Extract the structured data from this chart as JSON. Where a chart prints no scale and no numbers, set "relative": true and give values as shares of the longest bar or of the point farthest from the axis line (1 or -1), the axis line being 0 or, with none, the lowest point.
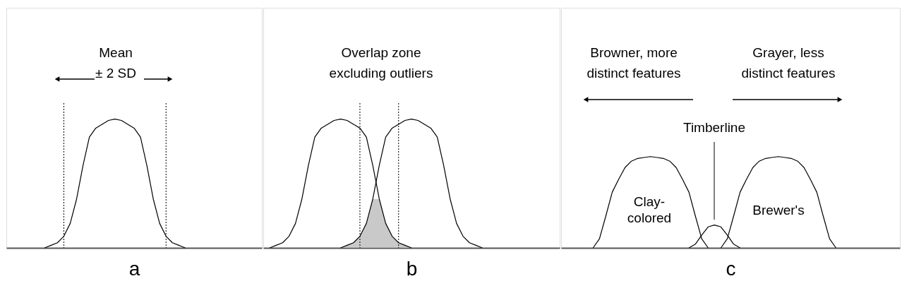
{
  "chart_data": [
    {
      "type": "line",
      "xlabel": "a",
      "relative": true,
      "categories": [
        null,
        null,
        null,
        null,
        null,
        null,
        null,
        null,
        null,
        null,
        null,
        null,
        null,
        null,
        null,
        null,
        null,
        null,
        null,
        null,
        null,
        null,
        null,
        null,
        null,
        null,
        null,
        null,
        null,
        null,
        null,
        null,
        null,
        null,
        null,
        null,
        null,
        null,
        null,
        null,
        null
      ],
      "series": [
        {
          "color": "#000000",
          "values": [
            null,
            null,
            null,
            null,
            null,
            null,
            0,
            0.02,
            0.04,
            0.09,
            0.19,
            0.38,
            0.64,
            0.86,
            0.93,
            0.96,
            0.99,
            1,
            0.99,
            0.96,
            0.93,
            0.86,
            0.64,
            0.38,
            0.19,
            0.09,
            0.04,
            0.02,
            0,
            null,
            null,
            null,
            null,
            null,
            null,
            null,
            null,
            null,
            null,
            null,
            null
          ]
        }
      ],
      "annotations": [
        "Mean\n± 2 SD"
      ]
    },
    {
      "type": "line",
      "xlabel": "b",
      "relative": true,
      "categories": [
        null,
        null,
        null,
        null,
        null,
        null,
        null,
        null,
        null,
        null,
        null,
        null,
        null,
        null,
        null,
        null,
        null,
        null,
        null,
        null,
        null,
        null,
        null,
        null,
        null,
        null,
        null,
        null,
        null,
        null,
        null,
        null,
        null,
        null,
        null,
        null,
        null,
        null,
        null,
        null,
        null,
        null,
        null,
        null,
        null,
        null,
        null
      ],
      "series": [
        {
          "color": "#000000",
          "values": [
            null,
            0,
            0.02,
            0.04,
            0.09,
            0.19,
            0.38,
            0.64,
            0.86,
            0.93,
            0.96,
            0.99,
            1,
            0.99,
            0.96,
            0.93,
            0.86,
            0.64,
            0.38,
            0.19,
            0.09,
            0.04,
            0.02,
            0,
            null,
            null,
            null,
            null,
            null,
            null,
            null,
            null,
            null,
            null,
            null,
            null,
            null,
            null,
            null,
            null,
            null,
            null,
            null,
            null,
            null,
            null,
            null
          ]
        },
        {
          "color": "#000000",
          "values": [
            null,
            null,
            null,
            null,
            null,
            null,
            null,
            null,
            null,
            null,
            null,
            null,
            0,
            0.02,
            0.04,
            0.09,
            0.19,
            0.38,
            0.64,
            0.86,
            0.93,
            0.96,
            0.99,
            1,
            0.99,
            0.96,
            0.93,
            0.86,
            0.64,
            0.38,
            0.19,
            0.09,
            0.04,
            0.02,
            0,
            null,
            null,
            null,
            null,
            null,
            null,
            null,
            null,
            null,
            null,
            null,
            null
          ]
        },
        {
          "type": "area",
          "color": "#bbbbbb",
          "values": [
            null,
            null,
            null,
            null,
            null,
            null,
            null,
            null,
            null,
            null,
            null,
            null,
            0,
            0.02,
            0.04,
            0.09,
            0.19,
            0.38,
            0.38,
            0.19,
            0.09,
            0.04,
            0.02,
            0,
            null,
            null,
            null,
            null,
            null,
            null,
            null,
            null,
            null,
            null,
            null,
            null,
            null,
            null,
            null,
            null,
            null,
            null,
            null,
            null,
            null,
            null,
            null
          ]
        }
      ],
      "annotations": [
        "Overlap zone\nexcluding outliers"
      ]
    },
    {
      "type": "line",
      "xlabel": "c",
      "relative": true,
      "categories": [
        null,
        null,
        null,
        null,
        null,
        null,
        null,
        null,
        null,
        null,
        null,
        null,
        null,
        null,
        null,
        null,
        null,
        null,
        null,
        null,
        null,
        null,
        null,
        null,
        null,
        null,
        null,
        null,
        null,
        null,
        null,
        null,
        null,
        null,
        null,
        null,
        null,
        null,
        null,
        null,
        null,
        null,
        null,
        null,
        null,
        null,
        null,
        null,
        null,
        null,
        null,
        null,
        null,
        null
      ],
      "series": [
        {
          "name": "Clay-\ncolored",
          "color": "#000000",
          "values": [
            null,
            null,
            null,
            null,
            null,
            0,
            0.1,
            0.35,
            0.61,
            0.75,
            0.88,
            0.95,
            0.98,
            0.99,
            1,
            0.99,
            0.98,
            0.95,
            0.88,
            0.75,
            0.61,
            0.35,
            0.1,
            0,
            null,
            null,
            null,
            null,
            null,
            null,
            null,
            null,
            null,
            null,
            null,
            null,
            null,
            null,
            null,
            null,
            null,
            null,
            null,
            null,
            null,
            null,
            null,
            null,
            null,
            null,
            null,
            null,
            null,
            null
          ]
        },
        {
          "color": "#000000",
          "values": [
            null,
            null,
            null,
            null,
            null,
            null,
            null,
            null,
            null,
            null,
            null,
            null,
            null,
            null,
            null,
            null,
            null,
            null,
            null,
            null,
            0,
            0.04,
            0.14,
            0.23,
            0.25,
            0.23,
            0.14,
            0.04,
            0,
            null,
            null,
            null,
            null,
            null,
            null,
            null,
            null,
            null,
            null,
            null,
            null,
            null,
            null,
            null,
            null,
            null,
            null,
            null,
            null,
            null,
            null,
            null,
            null,
            null
          ]
        },
        {
          "name": "Brewer's",
          "color": "#000000",
          "values": [
            null,
            null,
            null,
            null,
            null,
            null,
            null,
            null,
            null,
            null,
            null,
            null,
            null,
            null,
            null,
            null,
            null,
            null,
            null,
            null,
            null,
            null,
            null,
            null,
            null,
            0,
            0.1,
            0.35,
            0.61,
            0.75,
            0.88,
            0.95,
            0.98,
            0.99,
            1,
            0.99,
            0.98,
            0.95,
            0.88,
            0.75,
            0.61,
            0.35,
            0.1,
            0,
            null,
            null,
            null,
            null,
            null,
            null,
            null,
            null,
            null,
            null
          ]
        }
      ],
      "annotations": [
        "Browner, more\ndistinct features",
        "Grayer, less\ndistinct features",
        "Timberline"
      ]
    }
  ]
}
